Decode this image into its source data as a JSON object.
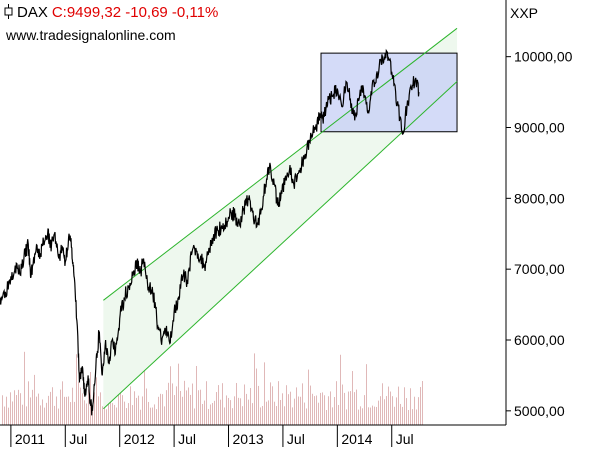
{
  "header": {
    "symbol": "DAX",
    "quote": "C:9499,32 -10,69 -0,11%",
    "website": "www.tradesignalonline.com",
    "right_label": "XXP",
    "icon": "candlestick-icon"
  },
  "colors": {
    "price_line": "#000000",
    "channel_line": "#2db52d",
    "channel_fill": "#eef8ee",
    "box_fill": "#c6cff5",
    "box_border": "#000000",
    "volume": "#e0b8b8",
    "quote_text": "#e00000"
  },
  "chart_data": {
    "type": "line",
    "series": [
      {
        "values": [
          [
            2010.9,
            6600
          ],
          [
            2010.95,
            6680
          ],
          [
            2011.0,
            6900
          ],
          [
            2011.04,
            7050
          ],
          [
            2011.08,
            6950
          ],
          [
            2011.12,
            7150
          ],
          [
            2011.16,
            7350
          ],
          [
            2011.18,
            6900
          ],
          [
            2011.2,
            7050
          ],
          [
            2011.23,
            7250
          ],
          [
            2011.27,
            7200
          ],
          [
            2011.3,
            7400
          ],
          [
            2011.34,
            7550
          ],
          [
            2011.36,
            7300
          ],
          [
            2011.4,
            7500
          ],
          [
            2011.44,
            7150
          ],
          [
            2011.47,
            7300
          ],
          [
            2011.5,
            7100
          ],
          [
            2011.53,
            7450
          ],
          [
            2011.56,
            7300
          ],
          [
            2011.58,
            6900
          ],
          [
            2011.61,
            6200
          ],
          [
            2011.63,
            5400
          ],
          [
            2011.66,
            5600
          ],
          [
            2011.68,
            5200
          ],
          [
            2011.71,
            5500
          ],
          [
            2011.73,
            5100
          ],
          [
            2011.75,
            5000
          ],
          [
            2011.78,
            5600
          ],
          [
            2011.81,
            6100
          ],
          [
            2011.84,
            5500
          ],
          [
            2011.87,
            6000
          ],
          [
            2011.9,
            5700
          ],
          [
            2011.93,
            6000
          ],
          [
            2011.96,
            5800
          ],
          [
            2012.0,
            6300
          ],
          [
            2012.04,
            6600
          ],
          [
            2012.08,
            6750
          ],
          [
            2012.12,
            6900
          ],
          [
            2012.16,
            7100
          ],
          [
            2012.19,
            6950
          ],
          [
            2012.22,
            7150
          ],
          [
            2012.26,
            6700
          ],
          [
            2012.3,
            6750
          ],
          [
            2012.34,
            6300
          ],
          [
            2012.38,
            6000
          ],
          [
            2012.42,
            6150
          ],
          [
            2012.46,
            5950
          ],
          [
            2012.5,
            6400
          ],
          [
            2012.54,
            6600
          ],
          [
            2012.58,
            6900
          ],
          [
            2012.62,
            6850
          ],
          [
            2012.66,
            7200
          ],
          [
            2012.7,
            7300
          ],
          [
            2012.74,
            7150
          ],
          [
            2012.78,
            7050
          ],
          [
            2012.82,
            7300
          ],
          [
            2012.86,
            7450
          ],
          [
            2012.9,
            7550
          ],
          [
            2012.94,
            7600
          ],
          [
            2012.98,
            7650
          ],
          [
            2013.02,
            7800
          ],
          [
            2013.06,
            7750
          ],
          [
            2013.1,
            7650
          ],
          [
            2013.14,
            7850
          ],
          [
            2013.18,
            8000
          ],
          [
            2013.22,
            7800
          ],
          [
            2013.26,
            7600
          ],
          [
            2013.3,
            7850
          ],
          [
            2013.34,
            8200
          ],
          [
            2013.38,
            8500
          ],
          [
            2013.42,
            8200
          ],
          [
            2013.45,
            7900
          ],
          [
            2013.48,
            8000
          ],
          [
            2013.52,
            8300
          ],
          [
            2013.56,
            8400
          ],
          [
            2013.6,
            8200
          ],
          [
            2013.64,
            8350
          ],
          [
            2013.68,
            8500
          ],
          [
            2013.72,
            8700
          ],
          [
            2013.76,
            8900
          ],
          [
            2013.8,
            9000
          ],
          [
            2013.84,
            9200
          ],
          [
            2013.88,
            9150
          ],
          [
            2013.92,
            9400
          ],
          [
            2013.96,
            9450
          ],
          [
            2014.0,
            9550
          ],
          [
            2014.04,
            9300
          ],
          [
            2014.08,
            9650
          ],
          [
            2014.12,
            9400
          ],
          [
            2014.16,
            9100
          ],
          [
            2014.2,
            9400
          ],
          [
            2014.24,
            9550
          ],
          [
            2014.28,
            9200
          ],
          [
            2014.32,
            9600
          ],
          [
            2014.36,
            9750
          ],
          [
            2014.4,
            9950
          ],
          [
            2014.44,
            10050
          ],
          [
            2014.48,
            9950
          ],
          [
            2014.52,
            9600
          ],
          [
            2014.56,
            9300
          ],
          [
            2014.6,
            8900
          ],
          [
            2014.64,
            9300
          ],
          [
            2014.68,
            9550
          ],
          [
            2014.72,
            9700
          ],
          [
            2014.75,
            9500
          ]
        ]
      }
    ],
    "channel": {
      "upper": [
        [
          2011.85,
          6560
        ],
        [
          2015.1,
          10400
        ]
      ],
      "lower": [
        [
          2011.85,
          5030
        ],
        [
          2015.1,
          9650
        ]
      ]
    },
    "highlight_box": {
      "x": [
        2013.85,
        2015.1
      ],
      "y": [
        8940,
        10050
      ]
    },
    "xlim": [
      2010.9,
      2015.55
    ],
    "ylim": [
      4800,
      10800
    ],
    "x_ticks": [
      {
        "x": 2011.0,
        "label": "2011"
      },
      {
        "x": 2011.5,
        "label": "Jul"
      },
      {
        "x": 2012.0,
        "label": "2012"
      },
      {
        "x": 2012.5,
        "label": "Jul"
      },
      {
        "x": 2013.0,
        "label": "2013"
      },
      {
        "x": 2013.5,
        "label": "Jul"
      },
      {
        "x": 2014.0,
        "label": "2014"
      },
      {
        "x": 2014.5,
        "label": "Jul"
      }
    ],
    "y_ticks": [
      {
        "y": 5000,
        "label": "5000,00"
      },
      {
        "y": 6000,
        "label": "6000,00"
      },
      {
        "y": 7000,
        "label": "7000,00"
      },
      {
        "y": 8000,
        "label": "8000,00"
      },
      {
        "y": 9000,
        "label": "9000,00"
      },
      {
        "y": 10000,
        "label": "10000,00"
      }
    ],
    "grid": false,
    "legend": "none"
  }
}
